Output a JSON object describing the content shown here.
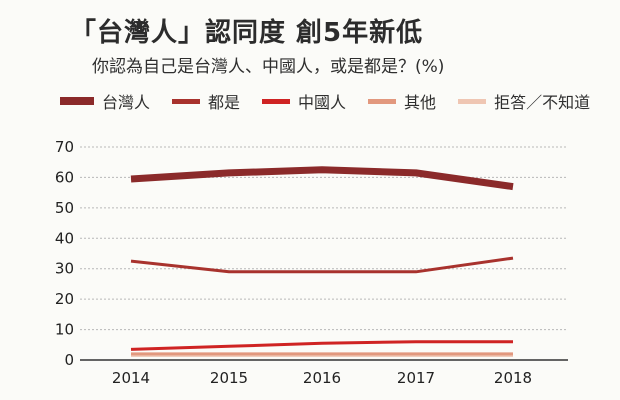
{
  "title": "「台灣人」認同度 創5年新低",
  "subtitle": "你認為自己是台灣人、中國人，或是都是？(%)",
  "chart_data": {
    "type": "line",
    "categories": [
      "2014",
      "2015",
      "2016",
      "2017",
      "2018"
    ],
    "series": [
      {
        "name": "台灣人",
        "values": [
          59.5,
          61.5,
          62.5,
          61.5,
          57
        ],
        "color": "#8b2a2a",
        "width": 7
      },
      {
        "name": "都是",
        "values": [
          32.5,
          29,
          29,
          29,
          33.5
        ],
        "color": "#a8322d",
        "width": 3
      },
      {
        "name": "中國人",
        "values": [
          3.5,
          4.5,
          5.5,
          6,
          6
        ],
        "color": "#cf2323",
        "width": 3
      },
      {
        "name": "其他",
        "values": [
          2,
          2,
          2,
          2,
          2
        ],
        "color": "#e2987e",
        "width": 3
      },
      {
        "name": "拒答／不知道",
        "values": [
          1.5,
          1.5,
          1.5,
          1.5,
          1.5
        ],
        "color": "#efc6b3",
        "width": 3
      }
    ],
    "yticks": [
      0,
      10,
      20,
      30,
      40,
      50,
      60,
      70
    ],
    "ylim": [
      0,
      70
    ],
    "grid": true,
    "legend_position": "top"
  }
}
